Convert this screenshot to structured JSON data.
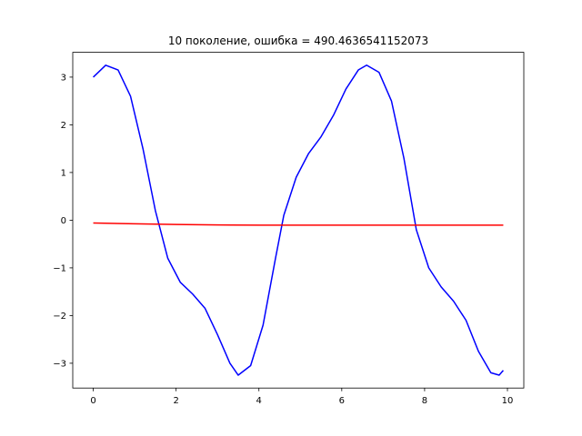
{
  "chart_data": {
    "type": "line",
    "title": "10 поколение, ошибка = 490.4636541152073",
    "xlim": [
      -0.495,
      10.395
    ],
    "ylim": [
      -3.52,
      3.52
    ],
    "xticks": [
      0,
      2,
      4,
      6,
      8,
      10
    ],
    "yticks": [
      {
        "value": -3,
        "label": "−3"
      },
      {
        "value": -2,
        "label": "−2"
      },
      {
        "value": -1,
        "label": "−1"
      },
      0,
      1,
      2,
      3
    ],
    "series": [
      {
        "color": "#0000ff",
        "x": [
          0,
          0.3,
          0.6,
          0.9,
          1.2,
          1.5,
          1.8,
          2.1,
          2.4,
          2.7,
          3.0,
          3.3,
          3.5,
          3.8,
          4.1,
          4.4,
          4.6,
          4.9,
          5.2,
          5.5,
          5.8,
          6.1,
          6.4,
          6.6,
          6.9,
          7.2,
          7.5,
          7.8,
          8.1,
          8.4,
          8.7,
          9.0,
          9.3,
          9.6,
          9.8,
          9.9
        ],
        "values": [
          3.0,
          3.25,
          3.15,
          2.6,
          1.5,
          0.2,
          -0.8,
          -1.3,
          -1.55,
          -1.85,
          -2.4,
          -3.0,
          -3.25,
          -3.05,
          -2.2,
          -0.8,
          0.1,
          0.9,
          1.4,
          1.75,
          2.2,
          2.75,
          3.15,
          3.25,
          3.1,
          2.5,
          1.3,
          -0.2,
          -1.0,
          -1.4,
          -1.7,
          -2.1,
          -2.75,
          -3.2,
          -3.25,
          -3.15
        ]
      },
      {
        "color": "#ff0000",
        "x": [
          0,
          1,
          2,
          3,
          4,
          6,
          8,
          9.9
        ],
        "values": [
          -0.06,
          -0.075,
          -0.09,
          -0.1,
          -0.105,
          -0.105,
          -0.105,
          -0.105
        ]
      }
    ]
  }
}
